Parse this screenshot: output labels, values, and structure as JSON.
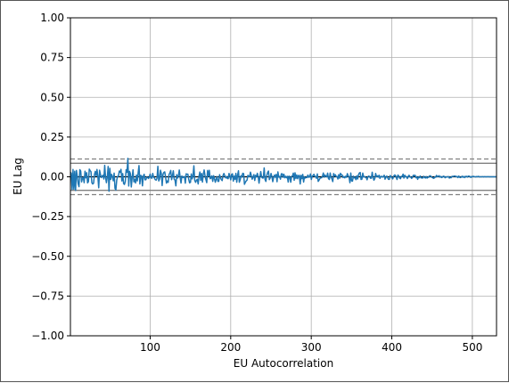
{
  "chart_data": {
    "type": "line",
    "title": "",
    "xlabel": "EU Autocorrelation",
    "ylabel": "EU Lag",
    "xlim": [
      1,
      530
    ],
    "ylim": [
      -1.0,
      1.0
    ],
    "grid": true,
    "x_ticks": [
      100,
      200,
      300,
      400,
      500
    ],
    "x_tick_labels": [
      "100",
      "200",
      "300",
      "400",
      "500"
    ],
    "y_ticks": [
      1.0,
      0.75,
      0.5,
      0.25,
      0.0,
      -0.25,
      -0.5,
      -0.75,
      -1.0
    ],
    "y_tick_labels": [
      "1.00",
      "0.75",
      "0.50",
      "0.25",
      "0.00",
      "−0.25",
      "−0.50",
      "−0.75",
      "−1.00"
    ],
    "reference_lines": [
      {
        "name": "zero",
        "y": 0.0,
        "style": "solid",
        "color": "#000000"
      },
      {
        "name": "upper-99-confidence",
        "y": 0.112,
        "style": "dashed",
        "color": "#808080"
      },
      {
        "name": "upper-95-confidence",
        "y": 0.085,
        "style": "solid",
        "color": "#808080"
      },
      {
        "name": "lower-95-confidence",
        "y": -0.085,
        "style": "solid",
        "color": "#808080"
      },
      {
        "name": "lower-99-confidence",
        "y": -0.112,
        "style": "dashed",
        "color": "#808080"
      }
    ],
    "series": [
      {
        "name": "autocorrelation",
        "color": "#1f77b4",
        "x_start": 1,
        "x_end": 530,
        "values": [
          0.03,
          0.022,
          -0.08,
          0.046,
          -0.078,
          0.035,
          -0.086,
          0.04,
          0.002,
          -0.043,
          -0.062,
          0.045,
          0.036,
          -0.032,
          -0.011,
          -0.003,
          -0.037,
          0.035,
          -0.007,
          0.026,
          -0.038,
          -0.03,
          0.048,
          0.039,
          0.032,
          -0.037,
          -0.045,
          -0.04,
          0.013,
          0.034,
          0.007,
          0.046,
          0.002,
          -0.069,
          0.041,
          0.016,
          -0.005,
          0.004,
          0.01,
          -0.014,
          0.072,
          -0.005,
          -0.037,
          -0.003,
          0.065,
          -0.091,
          0.053,
          -0.017,
          0.015,
          0.001,
          -0.025,
          0.023,
          -0.073,
          -0.083,
          -0.021,
          0.002,
          0.003,
          0.036,
          0.028,
          0.047,
          -0.026,
          0.02,
          -0.042,
          -0.048,
          -0.03,
          0.045,
          0.028,
          0.116,
          -0.058,
          0.034,
          0.019,
          -0.064,
          -0.005,
          0.044,
          -0.032,
          -0.015,
          -0.039,
          0.011,
          -0.026,
          0.025,
          0.071,
          -0.045,
          0.009,
          0.005,
          -0.057,
          0.003,
          0.016,
          -0.019,
          -0.018,
          -0.002,
          -0.004,
          -0.011,
          -0.002,
          0.017,
          -0.007,
          -0.009,
          0.021,
          -0.001,
          -0.008,
          -0.018,
          -0.021,
          -0.009,
          0.066,
          -0.026,
          -0.014,
          0.041,
          0.021,
          -0.055,
          0.016,
          0.028,
          0.031,
          -0.002,
          -0.04,
          -0.026,
          -0.035,
          0.014,
          0.024,
          0.04,
          -0.018,
          0.008,
          0.038,
          -0.014,
          -0.021,
          -0.057,
          0.013,
          -0.008,
          0.008,
          0.043,
          -0.004,
          -0.039,
          0.005,
          -0.005,
          -0.003,
          0.002,
          -0.04,
          0.019,
          0.016,
          0.017,
          -0.016,
          -0.038,
          -0.035,
          0.018,
          -0.013,
          0.007,
          0.069,
          -0.022,
          -0.035,
          -0.022,
          -0.015,
          -0.045,
          0.004,
          0.03,
          -0.022,
          0.021,
          -0.033,
          0.017,
          0.043,
          0.006,
          -0.017,
          -0.037,
          0.04,
          0.004,
          0.041,
          -0.012,
          -0.008,
          0.006,
          -0.029,
          0.007,
          -0.011,
          -0.034,
          -0.016,
          0.001,
          -0.029,
          -0.029,
          0.013,
          -0.006,
          -0.017,
          -0.024,
          0.008,
          0.021,
          0.007,
          -0.007,
          0.002,
          -0.01,
          -0.012,
          0.021,
          0.003,
          -0.019,
          0.015,
          0.019,
          -0.027,
          0.004,
          -0.016,
          0.022,
          -0.034,
          0.011,
          0.038,
          -0.034,
          -0.019,
          0.007,
          -0.002,
          0.022,
          0.02,
          -0.047,
          -0.035,
          -0.026,
          -0.021,
          0.009,
          0.002,
          0.001,
          0.029,
          0.008,
          -0.015,
          -0.003,
          0.014,
          -0.023,
          0.009,
          -0.001,
          0.022,
          0.001,
          -0.04,
          -0.001,
          0.033,
          -0.001,
          -0.008,
          -0.007,
          0.056,
          -0.017,
          -0.029,
          0.008,
          0.027,
          0.036,
          -0.018,
          -0.007,
          0.021,
          0.001,
          -0.031,
          -0.005,
          0.011,
          -0.003,
          0.015,
          -0.031,
          0.031,
          -0.002,
          0.002,
          -0.015,
          0.019,
          0.019,
          -0.003,
          0.016,
          -0.006,
          0.003,
          -0.006,
          0.003,
          -0.033,
          0.004,
          -0.004,
          -0.034,
          0.002,
          0.005,
          0.023,
          -0.022,
          0.025,
          -0.011,
          0.012,
          -0.012,
          0.008,
          0.009,
          -0.045,
          0.009,
          -0.012,
          0.015,
          -0.033,
          -0.001,
          -0.008,
          -0.003,
          -0.005,
          0.011,
          -0.003,
          0.0,
          0.018,
          -0.017,
          0.003,
          0.008,
          0.016,
          0.003,
          0.002,
          -0.009,
          0.018,
          -0.029,
          -0.021,
          -0.01,
          -0.007,
          -0.006,
          0.003,
          0.024,
          -0.002,
          0.011,
          0.003,
          0.0,
          0.023,
          -0.011,
          -0.017,
          0.024,
          -0.003,
          -0.013,
          -0.03,
          0.02,
          0.006,
          0.013,
          0.001,
          0.002,
          -0.014,
          0.014,
          -0.009,
          0.022,
          0.012,
          0.011,
          -0.005,
          0.001,
          -0.007,
          0.003,
          -0.003,
          0.02,
          0.006,
          -0.002,
          -0.037,
          0.024,
          -0.026,
          -0.027,
          0.004,
          -0.007,
          -0.004,
          -0.018,
          0.006,
          -0.014,
          0.013,
          0.024,
          0.027,
          -0.017,
          -0.015,
          0.023,
          -0.001,
          0.001,
          -0.003,
          -0.005,
          -0.019,
          -0.001,
          0.005,
          0.001,
          -0.009,
          -0.009,
          0.029,
          -0.005,
          -0.021,
          -0.012,
          0.021,
          0.001,
          0.006,
          -0.002,
          0.01,
          -0.01,
          0.002,
          0.003,
          -0.002,
          0.001,
          0.01,
          -0.015,
          -0.004,
          0.005,
          -0.006,
          -0.016,
          -0.016,
          0.008,
          0.001,
          -0.007,
          -0.013,
          0.003,
          0.011,
          0.01,
          -0.004,
          -0.017,
          0.011,
          0.005,
          -0.008,
          -0.012,
          0.003,
          0.002,
          0.017,
          -0.008,
          0.01,
          -0.0,
          0.001,
          -0.011,
          0.001,
          0.01,
          -0.001,
          -0.002,
          -0.01,
          -0.004,
          0.01,
          0.008,
          0.01,
          -0.006,
          -0.0,
          -0.016,
          -0.002,
          -0.006,
          0.005,
          -0.007,
          -0.007,
          -0.008,
          0.003,
          -0.004,
          -0.008,
          0.001,
          -0.008,
          -0.003,
          -0.003,
          0.006,
          0.006,
          -0.001,
          -0.004,
          -0.008,
          -0.01,
          -0.001,
          -0.003,
          0.009,
          0.001,
          0.003,
          0.007,
          -0.002,
          0.002,
          -0.005,
          -0.002,
          0.004,
          0.002,
          -0.006,
          -0.001,
          -0.002,
          0.001,
          0.001,
          -0.008,
          -0.003,
          -0.006,
          0.002,
          0.003,
          0.003,
          0.005,
          0.004,
          0.0,
          0.002,
          -0.005,
          0.005,
          -0.003,
          -0.005,
          -0.002,
          0.004,
          -0.003,
          0.002,
          -0.005,
          0.003,
          0.003,
          -0.002,
          0.004,
          0.004,
          0.001,
          -0.004,
          0.002,
          0.0,
          0.003,
          0.001,
          -0.0,
          -0.001,
          0.002,
          -0.0,
          0.003,
          -0.001,
          -0.0,
          0.0,
          0.0,
          0.001,
          -0.001,
          0.001,
          -0.0,
          0.0,
          -0.0,
          0.001,
          0.0,
          0.0,
          -0.0,
          -0.0,
          0.0,
          -0.0,
          0.0,
          0.0,
          -0.0,
          0.0
        ]
      }
    ]
  }
}
